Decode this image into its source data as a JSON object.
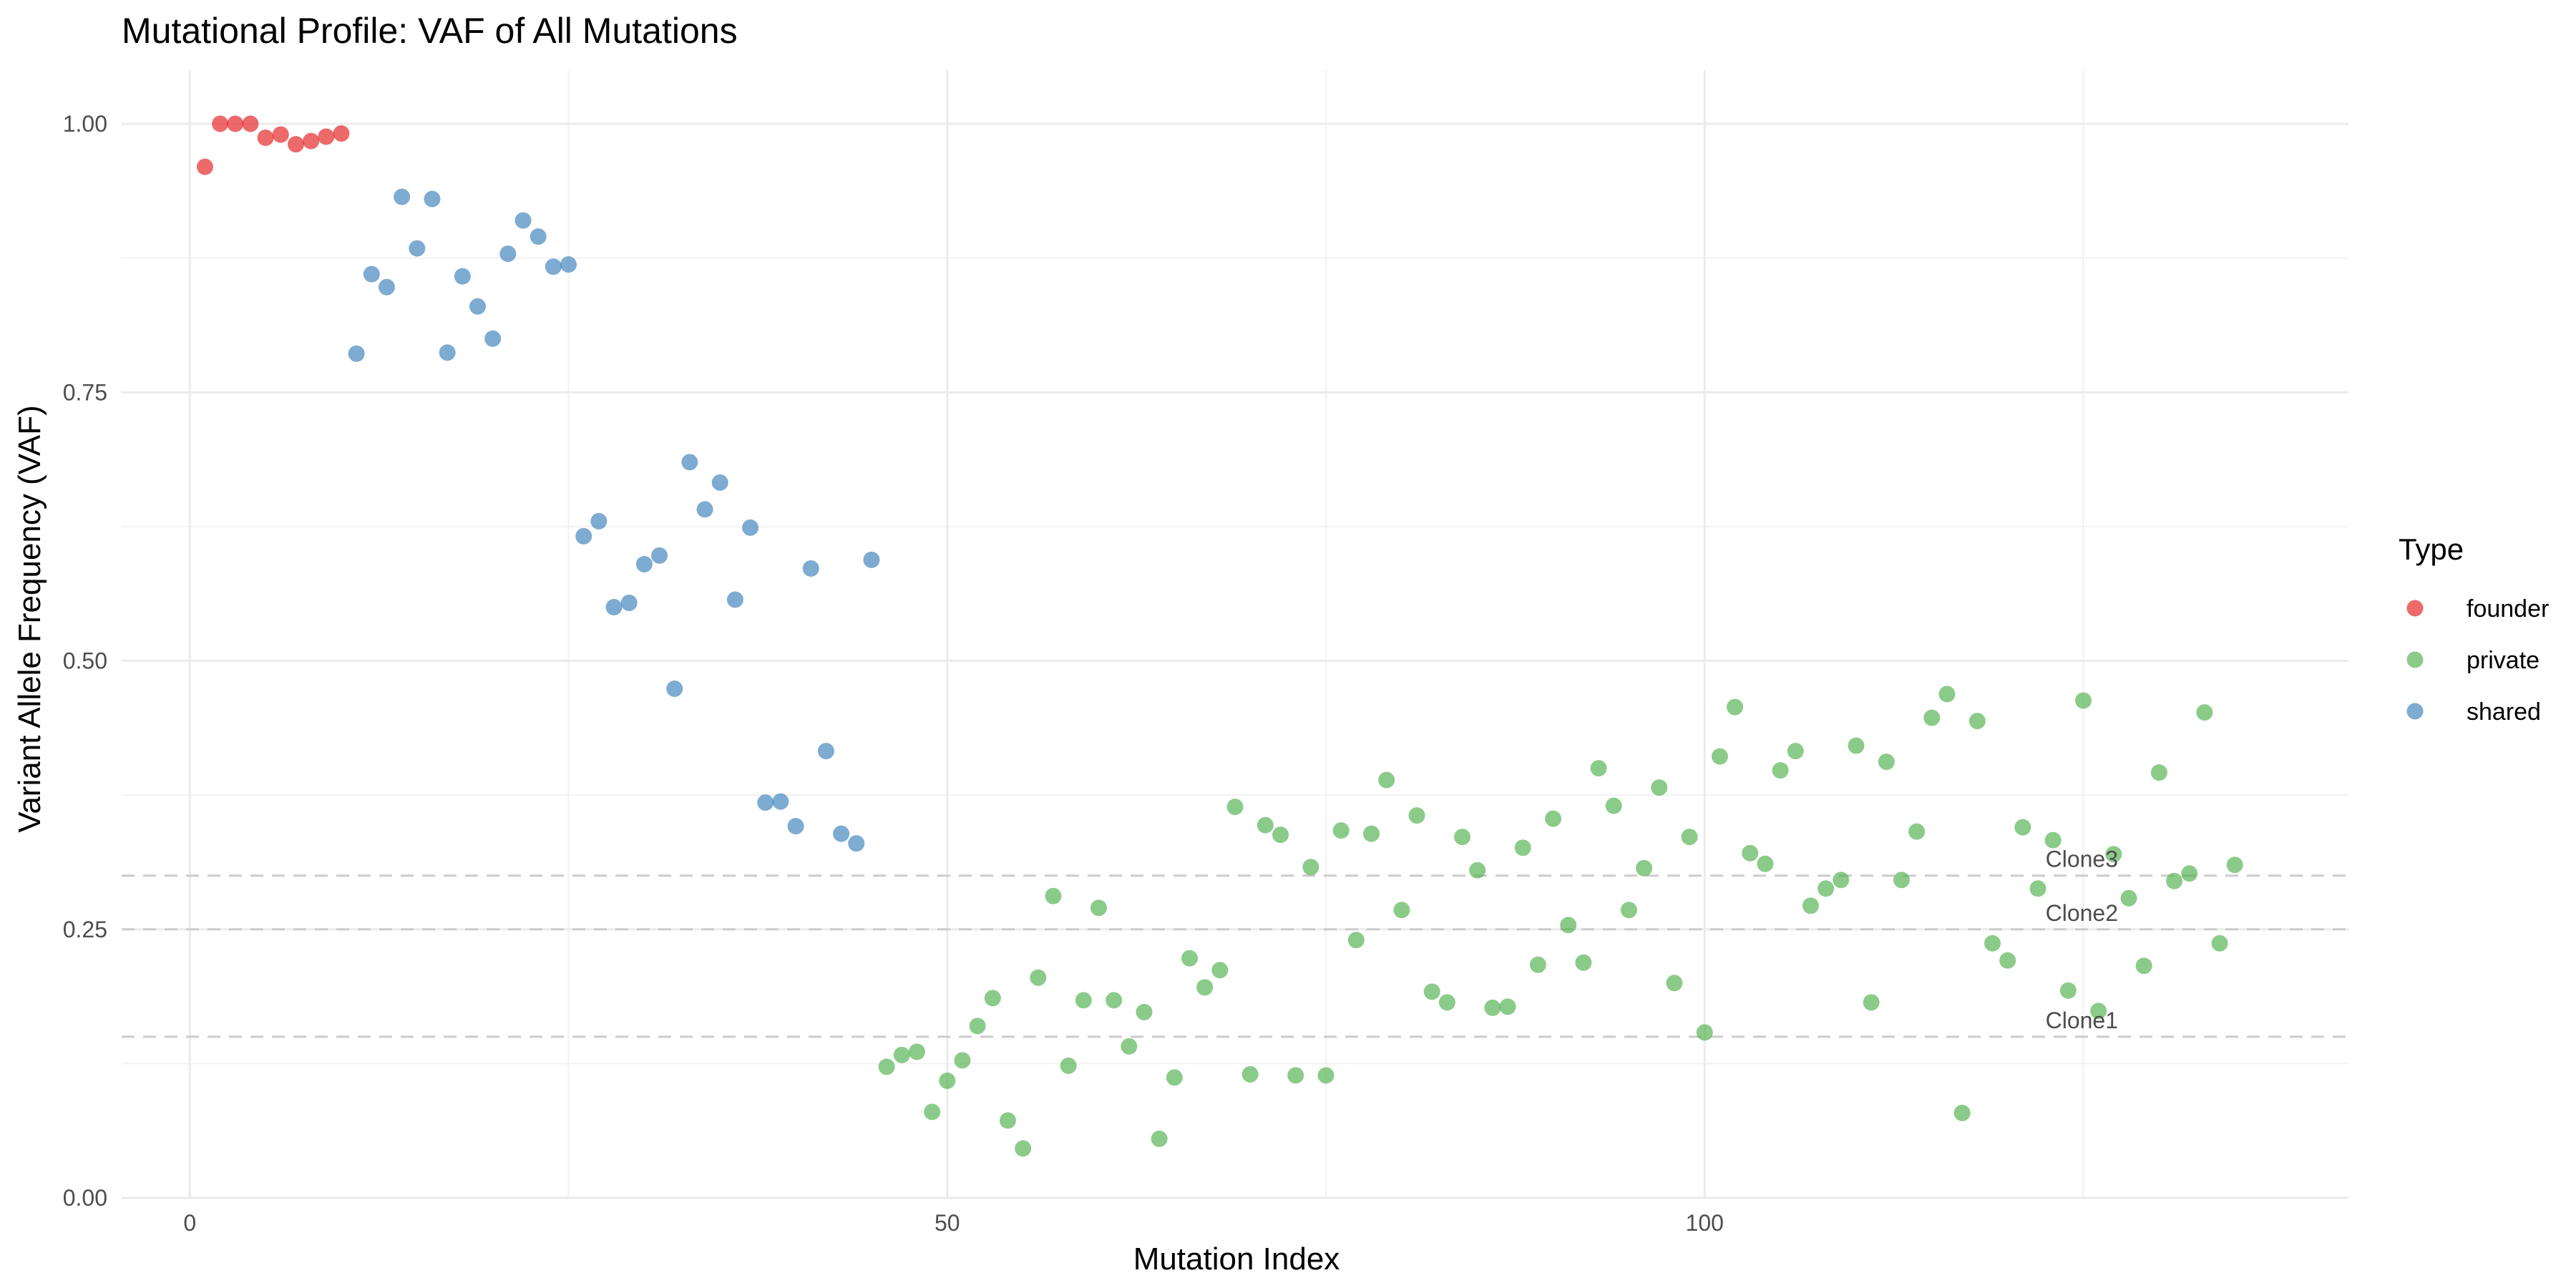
{
  "chart_data": {
    "type": "scatter",
    "title": "Mutational Profile: VAF of All Mutations",
    "xlabel": "Mutation Index",
    "ylabel": "Variant Allele Frequency (VAF)",
    "xlim": [
      -4.5,
      142.5
    ],
    "ylim": [
      0,
      1.05
    ],
    "x_ticks": [
      0,
      50,
      100
    ],
    "y_ticks": [
      0,
      0.25,
      0.5,
      0.75,
      1.0
    ],
    "y_tick_labels": [
      "0.00",
      "0.25",
      "0.50",
      "0.75",
      "1.00"
    ],
    "grid": true,
    "legend": {
      "title": "Type",
      "placement": "right"
    },
    "series": [
      {
        "name": "founder",
        "color": "#e41a1c",
        "x": [
          1,
          2,
          3,
          4,
          5,
          6,
          7,
          8,
          9,
          10
        ],
        "y": [
          0.96,
          1.0,
          1.0,
          1.0,
          0.987,
          0.99,
          0.981,
          0.984,
          0.988,
          0.991
        ]
      },
      {
        "name": "private",
        "color": "#4daf4a",
        "x": [
          46,
          47,
          48,
          49,
          50,
          51,
          52,
          53,
          54,
          55,
          56,
          57,
          58,
          59,
          60,
          61,
          62,
          63,
          64,
          65,
          66,
          67,
          68,
          69,
          70,
          71,
          72,
          73,
          74,
          75,
          76,
          77,
          78,
          79,
          80,
          81,
          82,
          83,
          84,
          85,
          86,
          87,
          88,
          89,
          90,
          91,
          92,
          93,
          94,
          95,
          96,
          97,
          98,
          99,
          100,
          101,
          102,
          103,
          104,
          105,
          106,
          107,
          108,
          109,
          110,
          111,
          112,
          113,
          114,
          115,
          116,
          117,
          118,
          119,
          120,
          121,
          122,
          123,
          124,
          125,
          126,
          127,
          128,
          129,
          130,
          131,
          132,
          133,
          134,
          135
        ],
        "y": [
          0.122,
          0.133,
          0.136,
          0.08,
          0.109,
          0.128,
          0.16,
          0.186,
          0.072,
          0.046,
          0.205,
          0.281,
          0.123,
          0.184,
          0.27,
          0.184,
          0.141,
          0.173,
          0.055,
          0.112,
          0.223,
          0.196,
          0.212,
          0.364,
          0.115,
          0.347,
          0.338,
          0.114,
          0.308,
          0.114,
          0.342,
          0.24,
          0.339,
          0.389,
          0.268,
          0.356,
          0.192,
          0.182,
          0.336,
          0.305,
          0.177,
          0.178,
          0.326,
          0.217,
          0.353,
          0.254,
          0.219,
          0.4,
          0.365,
          0.268,
          0.307,
          0.382,
          0.2,
          0.336,
          0.154,
          0.411,
          0.457,
          0.321,
          0.311,
          0.398,
          0.416,
          0.272,
          0.288,
          0.296,
          0.421,
          0.182,
          0.406,
          0.296,
          0.341,
          0.447,
          0.469,
          0.079,
          0.444,
          0.237,
          0.221,
          0.345,
          0.288,
          0.333,
          0.193,
          0.463,
          0.174,
          0.32,
          0.279,
          0.216,
          0.396,
          0.295,
          0.302,
          0.452,
          0.237,
          0.31
        ]
      },
      {
        "name": "shared",
        "color": "#377eb8",
        "x": [
          11,
          12,
          13,
          14,
          15,
          16,
          17,
          18,
          19,
          20,
          21,
          22,
          23,
          24,
          25,
          26,
          27,
          28,
          29,
          30,
          31,
          32,
          33,
          34,
          35,
          36,
          37,
          38,
          39,
          40,
          41,
          42,
          43,
          44,
          45
        ],
        "y": [
          0.786,
          0.86,
          0.848,
          0.932,
          0.884,
          0.93,
          0.787,
          0.858,
          0.83,
          0.8,
          0.879,
          0.91,
          0.895,
          0.867,
          0.869,
          0.616,
          0.63,
          0.55,
          0.554,
          0.59,
          0.598,
          0.474,
          0.685,
          0.641,
          0.666,
          0.557,
          0.624,
          0.368,
          0.369,
          0.346,
          0.586,
          0.416,
          0.339,
          0.33,
          0.594
        ]
      }
    ],
    "reference_lines": [
      {
        "y": 0.15,
        "label": "Clone1"
      },
      {
        "y": 0.25,
        "label": "Clone2"
      },
      {
        "y": 0.3,
        "label": "Clone3"
      }
    ]
  }
}
